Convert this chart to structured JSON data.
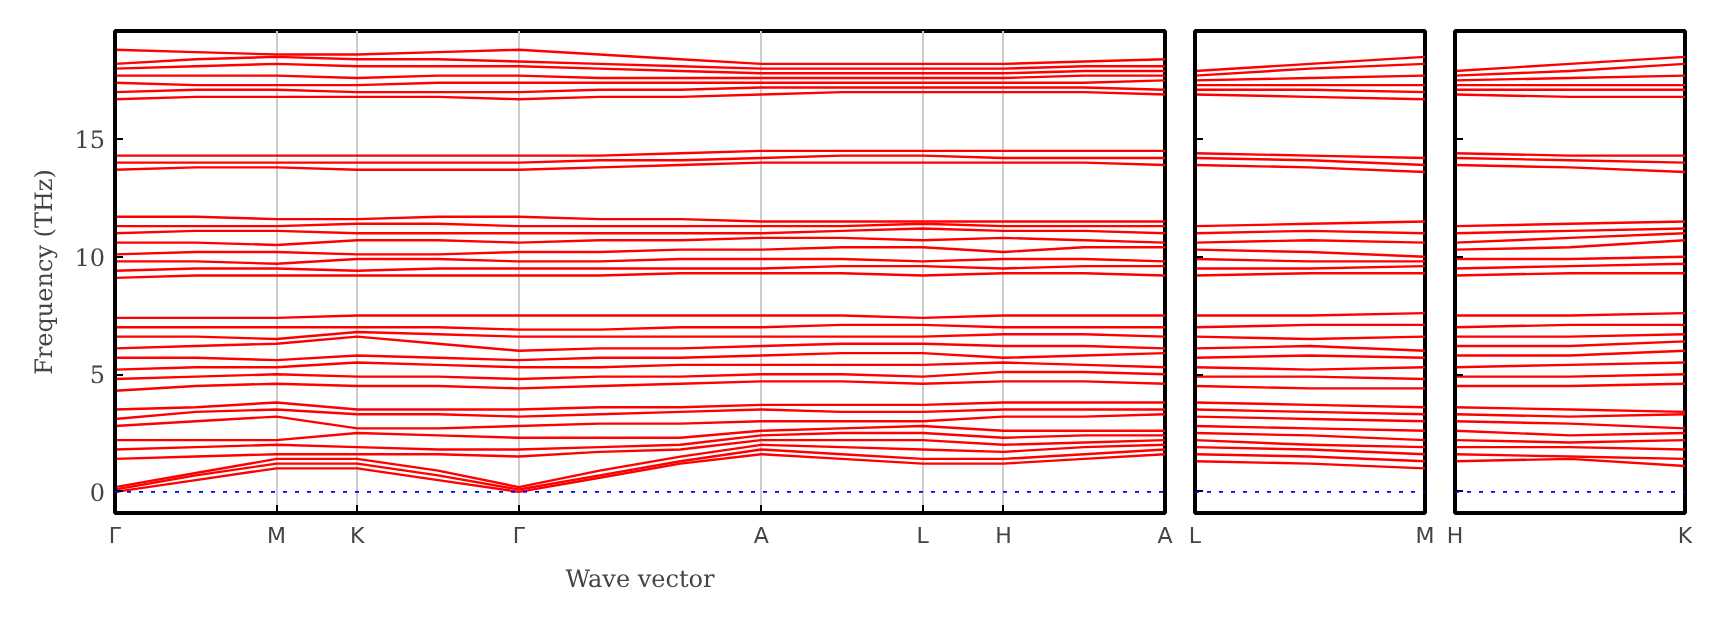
{
  "chart_data": [
    {
      "type": "line",
      "ylabel": "Frequency (THz)",
      "xlabel": "Wave vector",
      "categories": [
        "Γ",
        null,
        "M",
        "K",
        null,
        "Γ",
        null,
        null,
        "A",
        null,
        "L",
        "H",
        null,
        "A"
      ],
      "ylim": [
        -0.9,
        19.6
      ],
      "yticks": [
        0,
        5,
        10,
        15
      ],
      "grid": "x",
      "ref_lines": [
        {
          "axis": "y",
          "value": 0,
          "color": "#0000ff",
          "line_style": "dotted"
        }
      ],
      "series": [
        {
          "color": "#ff0000",
          "values": [
            0,
            0.5,
            1.0,
            1.0,
            0.5,
            0,
            0.6,
            1.2,
            1.6,
            1.4,
            1.2,
            1.2,
            1.4,
            1.6
          ]
        },
        {
          "color": "#ff0000",
          "values": [
            0.1,
            0.7,
            1.2,
            1.2,
            0.7,
            0.1,
            0.7,
            1.3,
            1.8,
            1.6,
            1.4,
            1.4,
            1.6,
            1.8
          ]
        },
        {
          "color": "#ff0000",
          "values": [
            0.2,
            0.8,
            1.4,
            1.4,
            0.9,
            0.2,
            0.9,
            1.5,
            2.0,
            1.9,
            1.8,
            1.7,
            1.9,
            2.0
          ]
        },
        {
          "color": "#ff0000",
          "values": [
            1.4,
            1.5,
            1.6,
            1.6,
            1.6,
            1.5,
            1.7,
            1.8,
            2.2,
            2.2,
            2.2,
            2.0,
            2.1,
            2.2
          ]
        },
        {
          "color": "#ff0000",
          "values": [
            1.8,
            1.9,
            2.0,
            1.9,
            1.8,
            1.8,
            1.9,
            2.0,
            2.4,
            2.5,
            2.5,
            2.3,
            2.4,
            2.4
          ]
        },
        {
          "color": "#ff0000",
          "values": [
            2.2,
            2.2,
            2.2,
            2.5,
            2.4,
            2.3,
            2.3,
            2.3,
            2.6,
            2.7,
            2.8,
            2.6,
            2.6,
            2.6
          ]
        },
        {
          "color": "#ff0000",
          "values": [
            2.8,
            3.0,
            3.2,
            2.7,
            2.7,
            2.8,
            2.9,
            2.9,
            3.0,
            3.0,
            3.0,
            3.2,
            3.2,
            3.3
          ]
        },
        {
          "color": "#ff0000",
          "values": [
            3.1,
            3.4,
            3.5,
            3.3,
            3.3,
            3.2,
            3.3,
            3.4,
            3.5,
            3.4,
            3.4,
            3.5,
            3.5,
            3.5
          ]
        },
        {
          "color": "#ff0000",
          "values": [
            3.5,
            3.6,
            3.8,
            3.5,
            3.5,
            3.5,
            3.6,
            3.6,
            3.7,
            3.7,
            3.7,
            3.8,
            3.8,
            3.8
          ]
        },
        {
          "color": "#ff0000",
          "values": [
            4.3,
            4.5,
            4.6,
            4.5,
            4.5,
            4.4,
            4.5,
            4.6,
            4.7,
            4.7,
            4.6,
            4.7,
            4.7,
            4.6
          ]
        },
        {
          "color": "#ff0000",
          "values": [
            4.8,
            4.9,
            5.0,
            4.9,
            4.9,
            4.8,
            4.9,
            4.9,
            5.0,
            5.0,
            4.9,
            5.1,
            5.1,
            5.0
          ]
        },
        {
          "color": "#ff0000",
          "values": [
            5.2,
            5.3,
            5.3,
            5.5,
            5.4,
            5.3,
            5.3,
            5.4,
            5.4,
            5.4,
            5.4,
            5.5,
            5.4,
            5.3
          ]
        },
        {
          "color": "#ff0000",
          "values": [
            5.7,
            5.7,
            5.6,
            5.8,
            5.7,
            5.6,
            5.7,
            5.7,
            5.8,
            5.9,
            5.9,
            5.7,
            5.8,
            5.9
          ]
        },
        {
          "color": "#ff0000",
          "values": [
            6.1,
            6.2,
            6.3,
            6.6,
            6.3,
            6.0,
            6.1,
            6.1,
            6.2,
            6.3,
            6.3,
            6.2,
            6.2,
            6.1
          ]
        },
        {
          "color": "#ff0000",
          "values": [
            6.6,
            6.6,
            6.5,
            6.8,
            6.7,
            6.6,
            6.6,
            6.6,
            6.6,
            6.6,
            6.6,
            6.7,
            6.7,
            6.6
          ]
        },
        {
          "color": "#ff0000",
          "values": [
            7.0,
            7.0,
            7.0,
            7.0,
            7.0,
            6.9,
            6.9,
            7.0,
            7.0,
            7.1,
            7.1,
            7.0,
            7.0,
            7.0
          ]
        },
        {
          "color": "#ff0000",
          "values": [
            7.4,
            7.4,
            7.4,
            7.5,
            7.5,
            7.5,
            7.5,
            7.5,
            7.5,
            7.5,
            7.4,
            7.5,
            7.5,
            7.5
          ]
        },
        {
          "color": "#ff0000",
          "values": [
            9.1,
            9.2,
            9.2,
            9.2,
            9.2,
            9.2,
            9.2,
            9.3,
            9.3,
            9.3,
            9.2,
            9.3,
            9.3,
            9.2
          ]
        },
        {
          "color": "#ff0000",
          "values": [
            9.4,
            9.5,
            9.5,
            9.4,
            9.5,
            9.5,
            9.5,
            9.5,
            9.5,
            9.6,
            9.6,
            9.5,
            9.6,
            9.6
          ]
        },
        {
          "color": "#ff0000",
          "values": [
            9.8,
            9.8,
            9.7,
            9.9,
            9.9,
            9.8,
            9.8,
            9.9,
            9.9,
            9.9,
            9.8,
            9.9,
            9.9,
            9.8
          ]
        },
        {
          "color": "#ff0000",
          "values": [
            10.1,
            10.2,
            10.2,
            10.1,
            10.1,
            10.2,
            10.2,
            10.3,
            10.3,
            10.4,
            10.4,
            10.2,
            10.4,
            10.4
          ]
        },
        {
          "color": "#ff0000",
          "values": [
            10.6,
            10.6,
            10.5,
            10.7,
            10.7,
            10.6,
            10.7,
            10.7,
            10.8,
            10.8,
            10.7,
            10.8,
            10.7,
            10.6
          ]
        },
        {
          "color": "#ff0000",
          "values": [
            11.0,
            11.1,
            11.1,
            11.0,
            11.0,
            11.0,
            11.0,
            11.0,
            11.0,
            11.1,
            11.2,
            11.1,
            11.1,
            11.0
          ]
        },
        {
          "color": "#ff0000",
          "values": [
            11.3,
            11.3,
            11.3,
            11.4,
            11.4,
            11.3,
            11.3,
            11.3,
            11.3,
            11.3,
            11.4,
            11.3,
            11.3,
            11.3
          ]
        },
        {
          "color": "#ff0000",
          "values": [
            11.7,
            11.7,
            11.6,
            11.6,
            11.7,
            11.7,
            11.6,
            11.6,
            11.5,
            11.5,
            11.5,
            11.5,
            11.5,
            11.5
          ]
        },
        {
          "color": "#ff0000",
          "values": [
            13.7,
            13.8,
            13.8,
            13.7,
            13.7,
            13.7,
            13.8,
            13.9,
            14.0,
            14.0,
            14.0,
            14.0,
            14.0,
            13.9
          ]
        },
        {
          "color": "#ff0000",
          "values": [
            14.0,
            14.0,
            14.0,
            14.0,
            14.0,
            14.0,
            14.1,
            14.1,
            14.2,
            14.3,
            14.3,
            14.2,
            14.2,
            14.2
          ]
        },
        {
          "color": "#ff0000",
          "values": [
            14.3,
            14.3,
            14.3,
            14.3,
            14.3,
            14.3,
            14.3,
            14.4,
            14.5,
            14.5,
            14.5,
            14.5,
            14.5,
            14.5
          ]
        },
        {
          "color": "#ff0000",
          "values": [
            16.7,
            16.8,
            16.8,
            16.8,
            16.8,
            16.7,
            16.8,
            16.8,
            16.9,
            17.0,
            17.0,
            17.0,
            17.0,
            16.9
          ]
        },
        {
          "color": "#ff0000",
          "values": [
            17.0,
            17.1,
            17.1,
            17.0,
            17.0,
            17.0,
            17.1,
            17.1,
            17.2,
            17.2,
            17.2,
            17.2,
            17.2,
            17.1
          ]
        },
        {
          "color": "#ff0000",
          "values": [
            17.4,
            17.3,
            17.3,
            17.3,
            17.4,
            17.4,
            17.4,
            17.4,
            17.4,
            17.4,
            17.4,
            17.4,
            17.4,
            17.5
          ]
        },
        {
          "color": "#ff0000",
          "values": [
            17.7,
            17.7,
            17.7,
            17.6,
            17.7,
            17.7,
            17.6,
            17.6,
            17.6,
            17.6,
            17.6,
            17.6,
            17.7,
            17.7
          ]
        },
        {
          "color": "#ff0000",
          "values": [
            18.0,
            18.1,
            18.2,
            18.1,
            18.1,
            18.1,
            18.0,
            17.9,
            17.8,
            17.8,
            17.8,
            17.8,
            17.9,
            17.9
          ]
        },
        {
          "color": "#ff0000",
          "values": [
            18.2,
            18.4,
            18.5,
            18.4,
            18.4,
            18.3,
            18.2,
            18.1,
            18.0,
            18.0,
            18.0,
            18.0,
            18.1,
            18.1
          ]
        },
        {
          "color": "#ff0000",
          "values": [
            18.8,
            18.7,
            18.6,
            18.6,
            18.7,
            18.8,
            18.6,
            18.4,
            18.2,
            18.2,
            18.2,
            18.2,
            18.3,
            18.4
          ]
        }
      ]
    },
    {
      "type": "line",
      "categories": [
        "L",
        null,
        "M"
      ],
      "ylim": [
        -0.9,
        19.6
      ],
      "tick_labels": "x",
      "yticks": [
        0,
        5,
        10,
        15
      ],
      "ref_lines": [
        {
          "axis": "y",
          "value": 0,
          "color": "#0000ff",
          "line_style": "dotted"
        }
      ],
      "series": [
        {
          "color": "#ff0000",
          "values": [
            1.3,
            1.2,
            1.0
          ]
        },
        {
          "color": "#ff0000",
          "values": [
            1.6,
            1.5,
            1.3
          ]
        },
        {
          "color": "#ff0000",
          "values": [
            1.9,
            1.8,
            1.6
          ]
        },
        {
          "color": "#ff0000",
          "values": [
            2.2,
            2.0,
            1.9
          ]
        },
        {
          "color": "#ff0000",
          "values": [
            2.5,
            2.4,
            2.2
          ]
        },
        {
          "color": "#ff0000",
          "values": [
            2.8,
            2.7,
            2.6
          ]
        },
        {
          "color": "#ff0000",
          "values": [
            3.2,
            3.1,
            3.0
          ]
        },
        {
          "color": "#ff0000",
          "values": [
            3.5,
            3.4,
            3.3
          ]
        },
        {
          "color": "#ff0000",
          "values": [
            3.8,
            3.7,
            3.6
          ]
        },
        {
          "color": "#ff0000",
          "values": [
            4.5,
            4.4,
            4.4
          ]
        },
        {
          "color": "#ff0000",
          "values": [
            4.9,
            4.9,
            4.8
          ]
        },
        {
          "color": "#ff0000",
          "values": [
            5.3,
            5.2,
            5.3
          ]
        },
        {
          "color": "#ff0000",
          "values": [
            5.7,
            5.8,
            5.7
          ]
        },
        {
          "color": "#ff0000",
          "values": [
            6.1,
            6.2,
            6.0
          ]
        },
        {
          "color": "#ff0000",
          "values": [
            6.6,
            6.5,
            6.6
          ]
        },
        {
          "color": "#ff0000",
          "values": [
            7.0,
            7.1,
            7.1
          ]
        },
        {
          "color": "#ff0000",
          "values": [
            7.5,
            7.5,
            7.6
          ]
        },
        {
          "color": "#ff0000",
          "values": [
            9.2,
            9.3,
            9.3
          ]
        },
        {
          "color": "#ff0000",
          "values": [
            9.5,
            9.5,
            9.6
          ]
        },
        {
          "color": "#ff0000",
          "values": [
            9.9,
            9.8,
            9.8
          ]
        },
        {
          "color": "#ff0000",
          "values": [
            10.3,
            10.2,
            10.0
          ]
        },
        {
          "color": "#ff0000",
          "values": [
            10.6,
            10.7,
            10.6
          ]
        },
        {
          "color": "#ff0000",
          "values": [
            11.0,
            11.1,
            11.0
          ]
        },
        {
          "color": "#ff0000",
          "values": [
            11.3,
            11.4,
            11.5
          ]
        },
        {
          "color": "#ff0000",
          "values": [
            13.9,
            13.8,
            13.6
          ]
        },
        {
          "color": "#ff0000",
          "values": [
            14.2,
            14.1,
            13.9
          ]
        },
        {
          "color": "#ff0000",
          "values": [
            14.4,
            14.3,
            14.2
          ]
        },
        {
          "color": "#ff0000",
          "values": [
            16.9,
            16.8,
            16.7
          ]
        },
        {
          "color": "#ff0000",
          "values": [
            17.1,
            17.1,
            17.0
          ]
        },
        {
          "color": "#ff0000",
          "values": [
            17.3,
            17.3,
            17.3
          ]
        },
        {
          "color": "#ff0000",
          "values": [
            17.5,
            17.6,
            17.7
          ]
        },
        {
          "color": "#ff0000",
          "values": [
            17.7,
            18.0,
            18.2
          ]
        },
        {
          "color": "#ff0000",
          "values": [
            17.9,
            18.2,
            18.5
          ]
        }
      ]
    },
    {
      "type": "line",
      "categories": [
        "H",
        null,
        "K"
      ],
      "ylim": [
        -0.9,
        19.6
      ],
      "tick_labels": "x",
      "yticks": [
        0,
        5,
        10,
        15
      ],
      "ref_lines": [
        {
          "axis": "y",
          "value": 0,
          "color": "#0000ff",
          "line_style": "dotted"
        }
      ],
      "series": [
        {
          "color": "#ff0000",
          "values": [
            1.3,
            1.4,
            1.1
          ]
        },
        {
          "color": "#ff0000",
          "values": [
            1.6,
            1.5,
            1.4
          ]
        },
        {
          "color": "#ff0000",
          "values": [
            1.9,
            1.9,
            1.8
          ]
        },
        {
          "color": "#ff0000",
          "values": [
            2.2,
            2.1,
            2.2
          ]
        },
        {
          "color": "#ff0000",
          "values": [
            2.6,
            2.4,
            2.5
          ]
        },
        {
          "color": "#ff0000",
          "values": [
            3.0,
            2.9,
            2.7
          ]
        },
        {
          "color": "#ff0000",
          "values": [
            3.3,
            3.2,
            3.3
          ]
        },
        {
          "color": "#ff0000",
          "values": [
            3.6,
            3.5,
            3.4
          ]
        },
        {
          "color": "#ff0000",
          "values": [
            4.5,
            4.5,
            4.6
          ]
        },
        {
          "color": "#ff0000",
          "values": [
            4.9,
            4.9,
            5.0
          ]
        },
        {
          "color": "#ff0000",
          "values": [
            5.3,
            5.4,
            5.5
          ]
        },
        {
          "color": "#ff0000",
          "values": [
            5.8,
            5.8,
            6.0
          ]
        },
        {
          "color": "#ff0000",
          "values": [
            6.2,
            6.2,
            6.4
          ]
        },
        {
          "color": "#ff0000",
          "values": [
            6.6,
            6.6,
            6.7
          ]
        },
        {
          "color": "#ff0000",
          "values": [
            7.0,
            7.1,
            7.1
          ]
        },
        {
          "color": "#ff0000",
          "values": [
            7.5,
            7.5,
            7.6
          ]
        },
        {
          "color": "#ff0000",
          "values": [
            9.2,
            9.3,
            9.3
          ]
        },
        {
          "color": "#ff0000",
          "values": [
            9.5,
            9.6,
            9.7
          ]
        },
        {
          "color": "#ff0000",
          "values": [
            9.9,
            9.9,
            10.0
          ]
        },
        {
          "color": "#ff0000",
          "values": [
            10.3,
            10.4,
            10.7
          ]
        },
        {
          "color": "#ff0000",
          "values": [
            10.6,
            10.8,
            11.0
          ]
        },
        {
          "color": "#ff0000",
          "values": [
            11.0,
            11.1,
            11.2
          ]
        },
        {
          "color": "#ff0000",
          "values": [
            11.3,
            11.4,
            11.5
          ]
        },
        {
          "color": "#ff0000",
          "values": [
            13.9,
            13.8,
            13.6
          ]
        },
        {
          "color": "#ff0000",
          "values": [
            14.2,
            14.1,
            14.0
          ]
        },
        {
          "color": "#ff0000",
          "values": [
            14.4,
            14.3,
            14.3
          ]
        },
        {
          "color": "#ff0000",
          "values": [
            16.9,
            16.8,
            16.8
          ]
        },
        {
          "color": "#ff0000",
          "values": [
            17.1,
            17.1,
            17.1
          ]
        },
        {
          "color": "#ff0000",
          "values": [
            17.3,
            17.3,
            17.3
          ]
        },
        {
          "color": "#ff0000",
          "values": [
            17.5,
            17.6,
            17.7
          ]
        },
        {
          "color": "#ff0000",
          "values": [
            17.7,
            17.9,
            18.2
          ]
        },
        {
          "color": "#ff0000",
          "values": [
            17.9,
            18.2,
            18.5
          ]
        }
      ]
    }
  ]
}
